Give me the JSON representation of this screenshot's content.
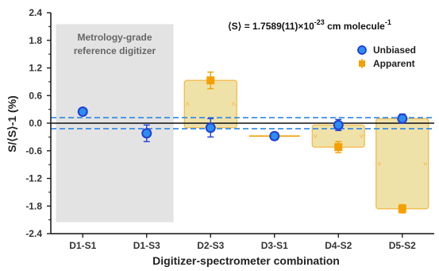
{
  "chart_data": {
    "type": "scatter",
    "title": "",
    "xlabel": "Digitizer-spectrometer combination",
    "ylabel": "S/⟨S⟩-1 (%)",
    "ylim": [
      -2.4,
      2.4
    ],
    "yticks": [
      2.4,
      1.8,
      1.2,
      0.6,
      0.0,
      -0.6,
      -1.2,
      -1.8,
      -2.4
    ],
    "ytick_labels": [
      "2.4",
      "1.8",
      "1.2",
      "0.6",
      "0.0",
      "-0.6",
      "-1.2",
      "-1.8",
      "-2.4"
    ],
    "categories": [
      "D1-S1",
      "D1-S3",
      "D2-S3",
      "D3-S1",
      "D4-S2",
      "D5-S2"
    ],
    "series": [
      {
        "name": "Unbiased",
        "color": "#1f3fd6",
        "fill": "#2e8df0",
        "marker": "circle",
        "values": [
          0.25,
          -0.22,
          -0.1,
          -0.28,
          -0.04,
          0.1
        ],
        "errors": [
          0.07,
          0.18,
          0.2,
          0.05,
          0.12,
          0.1
        ]
      },
      {
        "name": "Apparent",
        "color": "#f5a000",
        "marker": "square",
        "values": [
          null,
          null,
          0.93,
          -0.28,
          -0.52,
          -1.86
        ],
        "errors": [
          null,
          null,
          0.18,
          null,
          0.12,
          0.09
        ]
      }
    ],
    "bias_boxes": [
      {
        "category": "D2-S3",
        "from": -0.1,
        "to": 0.93
      },
      {
        "category": "D3-S1",
        "from": -0.28,
        "to": -0.28
      },
      {
        "category": "D4-S2",
        "from": -0.04,
        "to": -0.52
      },
      {
        "category": "D5-S2",
        "from": 0.1,
        "to": -1.86
      }
    ],
    "reference_band": {
      "categories": [
        "D1-S1",
        "D1-S3"
      ],
      "label_lines": [
        "Metrology-grade",
        "reference digitizer"
      ]
    },
    "dashed_lines": [
      0.12,
      -0.12
    ],
    "mean_annotation": {
      "prefix": "⟨S⟩ = 1.7589(11)×10",
      "exponent": "-23",
      "units": " cm molecule",
      "units_exponent": "-1"
    },
    "legend_position": "top-right",
    "grid": false
  }
}
